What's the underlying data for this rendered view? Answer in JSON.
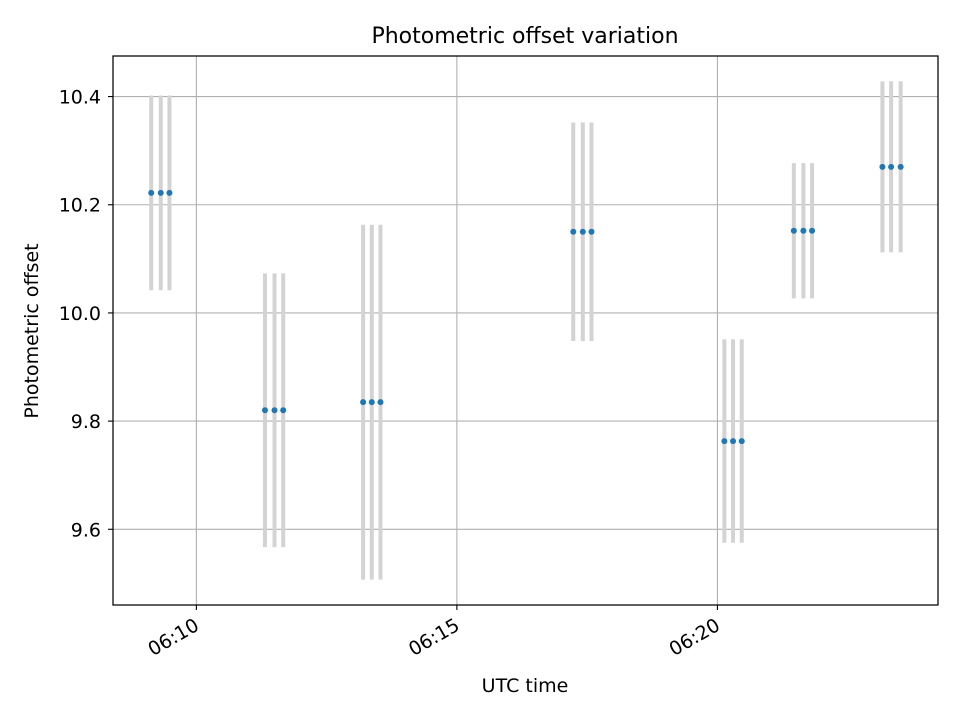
{
  "chart_data": {
    "type": "scatter",
    "title": "Photometric offset variation",
    "xlabel": "UTC time",
    "ylabel": "Photometric offset",
    "x_axis": {
      "kind": "time",
      "range": [
        "06:08:24",
        "06:24:14"
      ],
      "ticks": [
        "06:10",
        "06:15",
        "06:20"
      ]
    },
    "y_axis": {
      "range": [
        9.46,
        10.475
      ],
      "ticks": [
        9.6,
        9.8,
        10.0,
        10.2,
        10.4
      ],
      "tick_labels": [
        "9.6",
        "9.8",
        "10.0",
        "10.2",
        "10.4"
      ]
    },
    "grid": true,
    "points": [
      {
        "x": "06:09:08",
        "y": 10.222,
        "error": 0.18
      },
      {
        "x": "06:09:19",
        "y": 10.222,
        "error": 0.18
      },
      {
        "x": "06:09:29",
        "y": 10.222,
        "error": 0.18
      },
      {
        "x": "06:11:19",
        "y": 9.82,
        "error": 0.253
      },
      {
        "x": "06:11:30",
        "y": 9.82,
        "error": 0.253
      },
      {
        "x": "06:11:40",
        "y": 9.82,
        "error": 0.253
      },
      {
        "x": "06:13:12",
        "y": 9.835,
        "error": 0.328
      },
      {
        "x": "06:13:22",
        "y": 9.835,
        "error": 0.328
      },
      {
        "x": "06:13:32",
        "y": 9.835,
        "error": 0.328
      },
      {
        "x": "06:17:14",
        "y": 10.15,
        "error": 0.202
      },
      {
        "x": "06:17:25",
        "y": 10.15,
        "error": 0.202
      },
      {
        "x": "06:17:35",
        "y": 10.15,
        "error": 0.202
      },
      {
        "x": "06:20:08",
        "y": 9.763,
        "error": 0.188
      },
      {
        "x": "06:20:18",
        "y": 9.763,
        "error": 0.188
      },
      {
        "x": "06:20:28",
        "y": 9.763,
        "error": 0.188
      },
      {
        "x": "06:21:28",
        "y": 10.152,
        "error": 0.125
      },
      {
        "x": "06:21:39",
        "y": 10.152,
        "error": 0.125
      },
      {
        "x": "06:21:49",
        "y": 10.152,
        "error": 0.125
      },
      {
        "x": "06:23:10",
        "y": 10.27,
        "error": 0.158
      },
      {
        "x": "06:23:20",
        "y": 10.27,
        "error": 0.158
      },
      {
        "x": "06:23:31",
        "y": 10.27,
        "error": 0.158
      }
    ],
    "colors": {
      "marker": "#1f77b4",
      "errorbar": "#d3d3d3",
      "grid": "#b0b0b0",
      "axes": "#000000"
    }
  }
}
